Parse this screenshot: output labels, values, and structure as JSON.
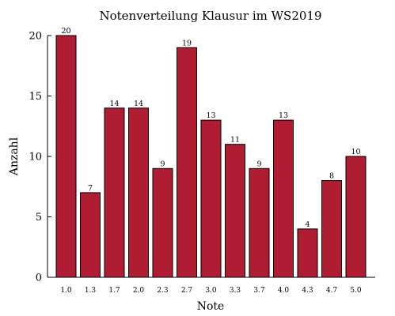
{
  "chart_data": {
    "type": "bar",
    "title": "Notenverteilung Klausur im WS2019",
    "xlabel": "Note",
    "ylabel": "Anzahl",
    "categories": [
      "1.0",
      "1.3",
      "1.7",
      "2.0",
      "2.3",
      "2.7",
      "3.0",
      "3.3",
      "3.7",
      "4.0",
      "4.3",
      "4.7",
      "5.0"
    ],
    "values": [
      20,
      7,
      14,
      14,
      9,
      19,
      13,
      11,
      9,
      13,
      4,
      8,
      10
    ],
    "ylim": [
      0,
      20
    ],
    "yticks": [
      "0",
      "5",
      "10",
      "15",
      "20"
    ],
    "bar_color": "#b01c32",
    "grid": false
  }
}
